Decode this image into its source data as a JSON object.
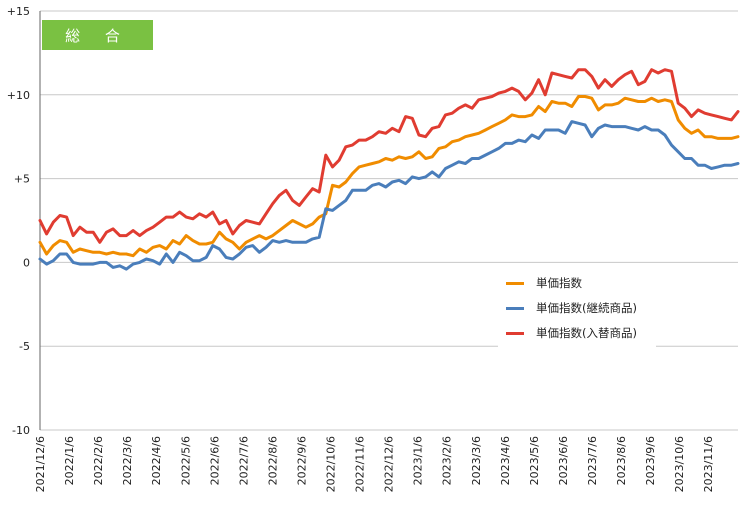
{
  "chart_data": {
    "type": "line",
    "title": "総 合",
    "ylim": [
      -10,
      15
    ],
    "yticks": [
      15,
      10,
      5,
      0,
      -5,
      -10
    ],
    "ytick_labels": [
      "+15",
      "+10",
      "+5",
      "0",
      "-5",
      "-10"
    ],
    "grid": true,
    "legend_position": "bottom-right",
    "xtick_labels": [
      "2021/12/6",
      "2022/1/6",
      "2022/2/6",
      "2022/3/6",
      "2022/4/6",
      "2022/5/6",
      "2022/6/6",
      "2022/7/6",
      "2022/8/6",
      "2022/9/6",
      "2022/10/6",
      "2022/11/6",
      "2022/12/6",
      "2023/1/6",
      "2023/2/6",
      "2023/3/6",
      "2023/4/6",
      "2023/5/6",
      "2023/6/6",
      "2023/7/6",
      "2023/8/6",
      "2023/9/6",
      "2023/10/6",
      "2023/11/6"
    ],
    "series": [
      {
        "name": "単価指数",
        "color": "#f08c00",
        "values": [
          1.2,
          0.5,
          1.0,
          1.3,
          1.2,
          0.6,
          0.8,
          0.7,
          0.6,
          0.6,
          0.5,
          0.6,
          0.5,
          0.5,
          0.4,
          0.8,
          0.6,
          0.9,
          1.0,
          0.8,
          1.3,
          1.1,
          1.6,
          1.3,
          1.1,
          1.1,
          1.2,
          1.8,
          1.4,
          1.2,
          0.8,
          1.2,
          1.4,
          1.6,
          1.4,
          1.6,
          1.9,
          2.2,
          2.5,
          2.3,
          2.1,
          2.3,
          2.7,
          2.9,
          4.6,
          4.5,
          4.8,
          5.3,
          5.7,
          5.8,
          5.9,
          6.0,
          6.2,
          6.1,
          6.3,
          6.2,
          6.3,
          6.6,
          6.2,
          6.3,
          6.8,
          6.9,
          7.2,
          7.3,
          7.5,
          7.6,
          7.7,
          7.9,
          8.1,
          8.3,
          8.5,
          8.8,
          8.7,
          8.7,
          8.8,
          9.3,
          9.0,
          9.6,
          9.5,
          9.5,
          9.3,
          9.9,
          9.9,
          9.8,
          9.1,
          9.4,
          9.4,
          9.5,
          9.8,
          9.7,
          9.6,
          9.6,
          9.8,
          9.6,
          9.7,
          9.6,
          8.5,
          8.0,
          7.7,
          7.9,
          7.5,
          7.5,
          7.4,
          7.4,
          7.4,
          7.5
        ]
      },
      {
        "name": "単価指数(継続商品)",
        "color": "#4a7ebb",
        "values": [
          0.2,
          -0.1,
          0.1,
          0.5,
          0.5,
          0.0,
          -0.1,
          -0.1,
          -0.1,
          0.0,
          0.0,
          -0.3,
          -0.2,
          -0.4,
          -0.1,
          0.0,
          0.2,
          0.1,
          -0.1,
          0.5,
          0.0,
          0.6,
          0.4,
          0.1,
          0.1,
          0.3,
          1.0,
          0.8,
          0.3,
          0.2,
          0.5,
          0.9,
          1.0,
          0.6,
          0.9,
          1.3,
          1.2,
          1.3,
          1.2,
          1.2,
          1.2,
          1.4,
          1.5,
          3.2,
          3.1,
          3.4,
          3.7,
          4.3,
          4.3,
          4.3,
          4.6,
          4.7,
          4.5,
          4.8,
          4.9,
          4.7,
          5.1,
          5.0,
          5.1,
          5.4,
          5.1,
          5.6,
          5.8,
          6.0,
          5.9,
          6.2,
          6.2,
          6.4,
          6.6,
          6.8,
          7.1,
          7.1,
          7.3,
          7.2,
          7.6,
          7.4,
          7.9,
          7.9,
          7.9,
          7.7,
          8.4,
          8.3,
          8.2,
          7.5,
          8.0,
          8.2,
          8.1,
          8.1,
          8.1,
          8.0,
          7.9,
          8.1,
          7.9,
          7.9,
          7.6,
          7.0,
          6.6,
          6.2,
          6.2,
          5.8,
          5.8,
          5.6,
          5.7,
          5.8,
          5.8,
          5.9
        ]
      },
      {
        "name": "単価指数(入替商品)",
        "color": "#e03c31",
        "values": [
          2.5,
          1.7,
          2.4,
          2.8,
          2.7,
          1.6,
          2.1,
          1.8,
          1.8,
          1.2,
          1.8,
          2.0,
          1.6,
          1.6,
          1.9,
          1.6,
          1.9,
          2.1,
          2.4,
          2.7,
          2.7,
          3.0,
          2.7,
          2.6,
          2.9,
          2.7,
          3.0,
          2.3,
          2.5,
          1.7,
          2.2,
          2.5,
          2.4,
          2.3,
          2.9,
          3.5,
          4.0,
          4.3,
          3.7,
          3.4,
          3.9,
          4.4,
          4.2,
          6.4,
          5.7,
          6.1,
          6.9,
          7.0,
          7.3,
          7.3,
          7.5,
          7.8,
          7.7,
          8.0,
          7.8,
          8.7,
          8.6,
          7.6,
          7.5,
          8.0,
          8.1,
          8.8,
          8.9,
          9.2,
          9.4,
          9.2,
          9.7,
          9.8,
          9.9,
          10.1,
          10.2,
          10.4,
          10.2,
          9.7,
          10.1,
          10.9,
          10.0,
          11.3,
          11.2,
          11.1,
          11.0,
          11.5,
          11.5,
          11.1,
          10.4,
          10.9,
          10.5,
          10.9,
          11.2,
          11.4,
          10.6,
          10.8,
          11.5,
          11.3,
          11.5,
          11.4,
          9.5,
          9.2,
          8.7,
          9.1,
          8.9,
          8.8,
          8.7,
          8.6,
          8.5,
          9.0
        ]
      }
    ]
  }
}
